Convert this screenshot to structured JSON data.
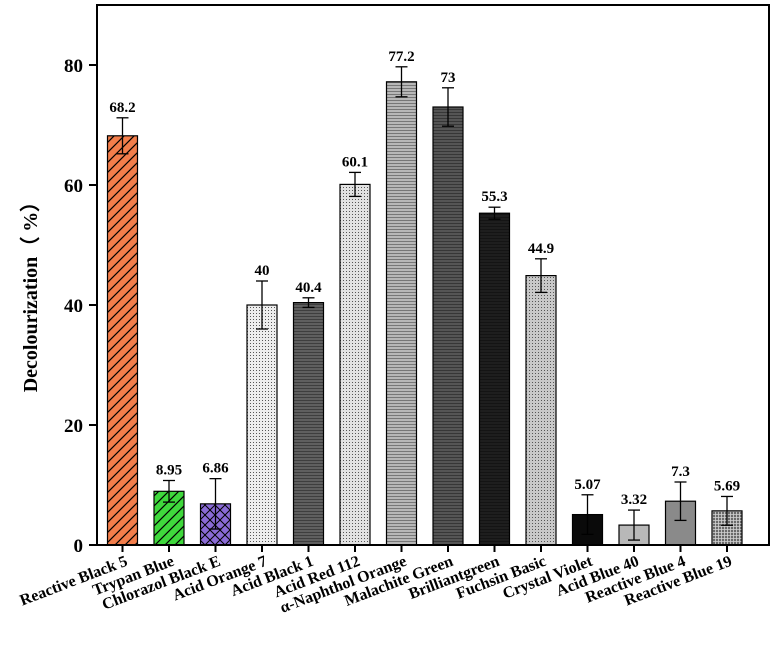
{
  "chart_data": {
    "type": "bar",
    "title": "",
    "xlabel": "",
    "ylabel": "Decolourization（ %）",
    "ylim": [
      0,
      90
    ],
    "yticks": [
      0,
      20,
      40,
      60,
      80
    ],
    "grid": false,
    "categories": [
      "Reactive Black 5",
      "Trypan Blue",
      "Chlorazol Black E",
      "Acid Orange 7",
      "Acid Black 1",
      "Acid Red 112",
      "α-Naphthol Orange",
      "Malachite Green",
      "Brilliantgreen",
      "Fuchsin Basic",
      "Crystal Violet",
      "Acid Blue 40",
      "Reactive Blue 4",
      "Reactive Blue 19"
    ],
    "values": [
      68.2,
      8.95,
      6.86,
      40,
      40.4,
      60.1,
      77.2,
      73,
      55.3,
      44.9,
      5.07,
      3.32,
      7.3,
      5.69
    ],
    "value_labels": [
      "68.2",
      "8.95",
      "6.86",
      "40",
      "40.4",
      "60.1",
      "77.2",
      "73",
      "55.3",
      "44.9",
      "5.07",
      "3.32",
      "7.3",
      "5.69"
    ],
    "errors": [
      3.0,
      1.8,
      4.2,
      4.0,
      0.8,
      2.0,
      2.5,
      3.2,
      1.0,
      2.8,
      3.3,
      2.5,
      3.2,
      2.4
    ],
    "colors": [
      "#f27d4a",
      "#3fd83c",
      "#8a6bd6",
      "#ededed",
      "#5f5f5f",
      "#e2e2e2",
      "#b7b7b7",
      "#555555",
      "#1e1e1e",
      "#c8c8c8",
      "#0a0a0a",
      "#b8b8b8",
      "#8a8a8a",
      "#6a6a6a"
    ],
    "patterns": [
      "diag",
      "diag",
      "cross",
      "dots",
      "hlines",
      "dots",
      "hlines",
      "hlines",
      "hlines",
      "dots",
      "none",
      "none",
      "none",
      "grid"
    ]
  }
}
